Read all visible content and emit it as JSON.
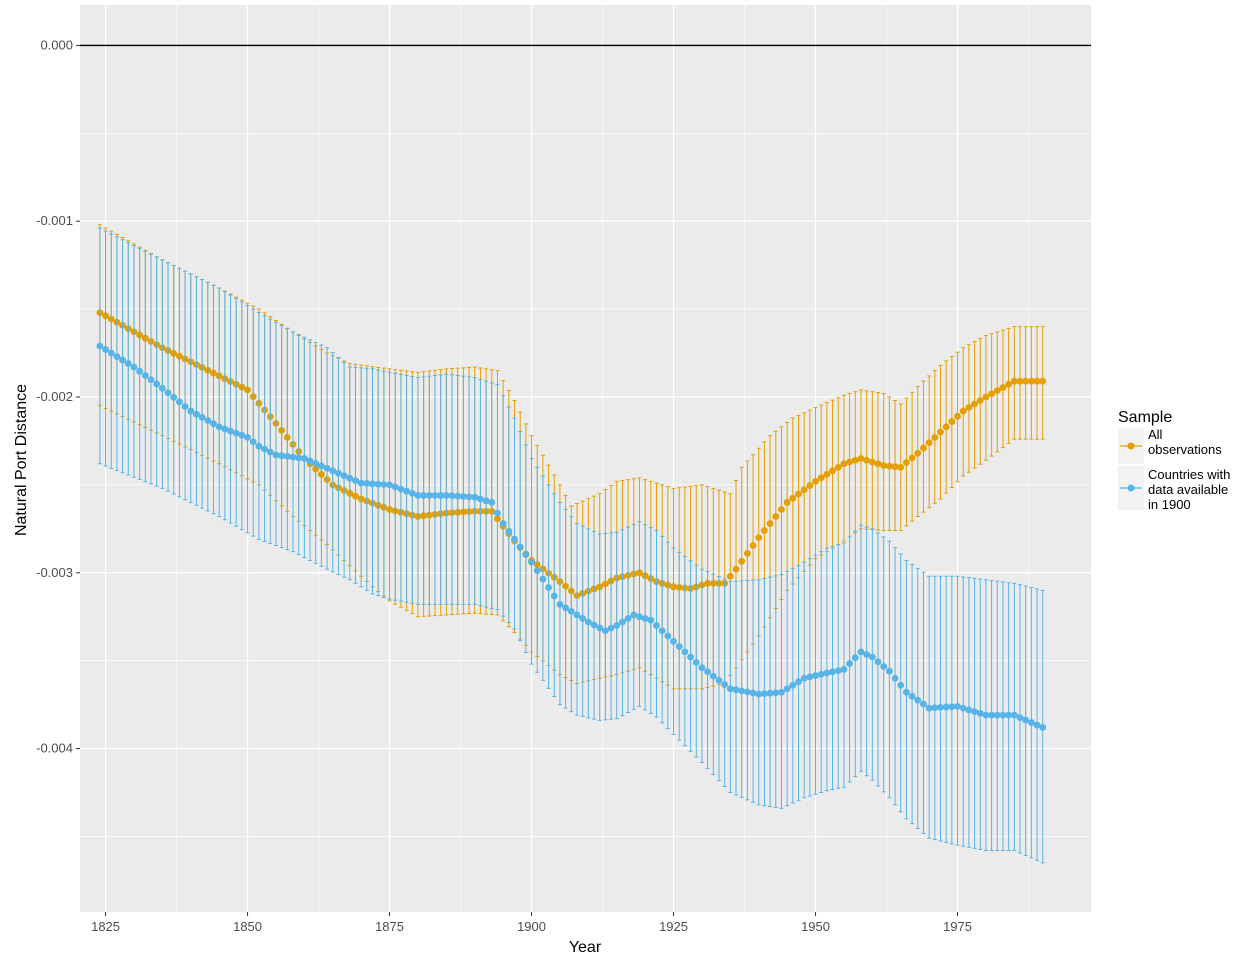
{
  "colors": {
    "panel_bg": "#EBEBEB",
    "grid": "#FFFFFF",
    "zero_line": "#000000",
    "all_observations": "#E69F00",
    "countries_1900": "#56B4E9"
  },
  "chart_data": {
    "type": "line",
    "title": "",
    "xlabel": "Year",
    "ylabel": "Natural Port Distance",
    "xlim": [
      1820.5,
      1998.5
    ],
    "ylim": [
      -0.00493,
      0.00023
    ],
    "x_ticks": [
      1825,
      1850,
      1875,
      1900,
      1925,
      1950,
      1975
    ],
    "x_tick_labels": [
      "1825",
      "1850",
      "1875",
      "1900",
      "1925",
      "1950",
      "1975"
    ],
    "y_ticks": [
      0.0,
      -0.001,
      -0.002,
      -0.003,
      -0.004
    ],
    "y_tick_labels": [
      "0.000",
      "-0.001",
      "-0.002",
      "-0.003",
      "-0.004"
    ],
    "hline": 0.0,
    "grid": true,
    "legend": {
      "title": "Sample",
      "position": "right",
      "entries": [
        {
          "label_lines": [
            "All",
            "observations"
          ]
        },
        {
          "label_lines": [
            "Countries with",
            "data available",
            "in 1900"
          ]
        }
      ]
    },
    "x_range": [
      1824,
      1990
    ],
    "series": [
      {
        "label": "All observations",
        "color": "#E69F00",
        "estimate_knots": [
          [
            1824,
            -0.00152
          ],
          [
            1835,
            -0.00172
          ],
          [
            1845,
            -0.00188
          ],
          [
            1850,
            -0.00196
          ],
          [
            1855,
            -0.00215
          ],
          [
            1860,
            -0.00235
          ],
          [
            1865,
            -0.0025
          ],
          [
            1870,
            -0.00258
          ],
          [
            1875,
            -0.00264
          ],
          [
            1880,
            -0.00268
          ],
          [
            1885,
            -0.00266
          ],
          [
            1890,
            -0.00265
          ],
          [
            1893,
            -0.00265
          ],
          [
            1897,
            -0.00282
          ],
          [
            1900,
            -0.00293
          ],
          [
            1905,
            -0.00305
          ],
          [
            1908,
            -0.00313
          ],
          [
            1912,
            -0.00308
          ],
          [
            1915,
            -0.00303
          ],
          [
            1919,
            -0.003
          ],
          [
            1922,
            -0.00305
          ],
          [
            1925,
            -0.00308
          ],
          [
            1928,
            -0.00309
          ],
          [
            1931,
            -0.00306
          ],
          [
            1934,
            -0.00306
          ],
          [
            1936,
            -0.00298
          ],
          [
            1940,
            -0.0028
          ],
          [
            1945,
            -0.0026
          ],
          [
            1950,
            -0.00248
          ],
          [
            1955,
            -0.00238
          ],
          [
            1958,
            -0.00235
          ],
          [
            1962,
            -0.00239
          ],
          [
            1965,
            -0.0024
          ],
          [
            1968,
            -0.00232
          ],
          [
            1972,
            -0.0022
          ],
          [
            1976,
            -0.00208
          ],
          [
            1980,
            -0.002
          ],
          [
            1985,
            -0.00191
          ],
          [
            1990,
            -0.00191
          ]
        ],
        "upper_knots": [
          [
            1824,
            -0.00102
          ],
          [
            1835,
            -0.00122
          ],
          [
            1845,
            -0.00138
          ],
          [
            1852,
            -0.0015
          ],
          [
            1858,
            -0.00163
          ],
          [
            1864,
            -0.00175
          ],
          [
            1868,
            -0.00181
          ],
          [
            1875,
            -0.00184
          ],
          [
            1880,
            -0.00186
          ],
          [
            1885,
            -0.00184
          ],
          [
            1890,
            -0.00183
          ],
          [
            1894,
            -0.00185
          ],
          [
            1897,
            -0.00202
          ],
          [
            1900,
            -0.00222
          ],
          [
            1905,
            -0.0025
          ],
          [
            1907,
            -0.00262
          ],
          [
            1912,
            -0.00255
          ],
          [
            1915,
            -0.00248
          ],
          [
            1919,
            -0.00246
          ],
          [
            1925,
            -0.00252
          ],
          [
            1930,
            -0.0025
          ],
          [
            1935,
            -0.00255
          ],
          [
            1937,
            -0.0024
          ],
          [
            1942,
            -0.00222
          ],
          [
            1946,
            -0.00212
          ],
          [
            1950,
            -0.00206
          ],
          [
            1955,
            -0.00199
          ],
          [
            1958,
            -0.00196
          ],
          [
            1962,
            -0.00198
          ],
          [
            1965,
            -0.00204
          ],
          [
            1968,
            -0.00194
          ],
          [
            1972,
            -0.00182
          ],
          [
            1976,
            -0.00172
          ],
          [
            1980,
            -0.00165
          ],
          [
            1985,
            -0.0016
          ],
          [
            1990,
            -0.0016
          ]
        ],
        "lower_knots": [
          [
            1824,
            -0.00205
          ],
          [
            1835,
            -0.00222
          ],
          [
            1845,
            -0.00238
          ],
          [
            1852,
            -0.0025
          ],
          [
            1858,
            -0.00268
          ],
          [
            1864,
            -0.00284
          ],
          [
            1868,
            -0.00296
          ],
          [
            1872,
            -0.00308
          ],
          [
            1875,
            -0.00316
          ],
          [
            1880,
            -0.00325
          ],
          [
            1885,
            -0.00324
          ],
          [
            1890,
            -0.00323
          ],
          [
            1894,
            -0.00324
          ],
          [
            1897,
            -0.00334
          ],
          [
            1900,
            -0.00345
          ],
          [
            1905,
            -0.00358
          ],
          [
            1908,
            -0.00363
          ],
          [
            1912,
            -0.0036
          ],
          [
            1915,
            -0.00358
          ],
          [
            1919,
            -0.00354
          ],
          [
            1925,
            -0.00366
          ],
          [
            1930,
            -0.00366
          ],
          [
            1934,
            -0.00363
          ],
          [
            1936,
            -0.00354
          ],
          [
            1940,
            -0.00336
          ],
          [
            1945,
            -0.0031
          ],
          [
            1950,
            -0.00292
          ],
          [
            1955,
            -0.00282
          ],
          [
            1958,
            -0.00275
          ],
          [
            1962,
            -0.00276
          ],
          [
            1965,
            -0.00276
          ],
          [
            1968,
            -0.00268
          ],
          [
            1972,
            -0.00258
          ],
          [
            1976,
            -0.00245
          ],
          [
            1980,
            -0.00236
          ],
          [
            1985,
            -0.00224
          ],
          [
            1990,
            -0.00224
          ]
        ]
      },
      {
        "label": "Countries with data available in 1900",
        "color": "#56B4E9",
        "estimate_knots": [
          [
            1824,
            -0.00171
          ],
          [
            1830,
            -0.00183
          ],
          [
            1835,
            -0.00195
          ],
          [
            1840,
            -0.00208
          ],
          [
            1845,
            -0.00217
          ],
          [
            1850,
            -0.00223
          ],
          [
            1852,
            -0.00228
          ],
          [
            1855,
            -0.00233
          ],
          [
            1860,
            -0.00235
          ],
          [
            1865,
            -0.00242
          ],
          [
            1870,
            -0.00249
          ],
          [
            1875,
            -0.0025
          ],
          [
            1880,
            -0.00256
          ],
          [
            1885,
            -0.00256
          ],
          [
            1890,
            -0.00257
          ],
          [
            1893,
            -0.0026
          ],
          [
            1895,
            -0.00272
          ],
          [
            1900,
            -0.00294
          ],
          [
            1905,
            -0.00318
          ],
          [
            1910,
            -0.00328
          ],
          [
            1913,
            -0.00333
          ],
          [
            1915,
            -0.0033
          ],
          [
            1918,
            -0.00324
          ],
          [
            1921,
            -0.00327
          ],
          [
            1925,
            -0.00339
          ],
          [
            1930,
            -0.00354
          ],
          [
            1935,
            -0.00366
          ],
          [
            1940,
            -0.00369
          ],
          [
            1944,
            -0.00368
          ],
          [
            1948,
            -0.0036
          ],
          [
            1952,
            -0.00357
          ],
          [
            1955,
            -0.00355
          ],
          [
            1958,
            -0.00345
          ],
          [
            1960,
            -0.00348
          ],
          [
            1963,
            -0.00356
          ],
          [
            1966,
            -0.00368
          ],
          [
            1970,
            -0.00377
          ],
          [
            1975,
            -0.00376
          ],
          [
            1980,
            -0.00381
          ],
          [
            1985,
            -0.00381
          ],
          [
            1990,
            -0.00388
          ]
        ],
        "upper_knots": [
          [
            1824,
            -0.00104
          ],
          [
            1835,
            -0.00122
          ],
          [
            1845,
            -0.00138
          ],
          [
            1852,
            -0.00152
          ],
          [
            1858,
            -0.00163
          ],
          [
            1864,
            -0.00172
          ],
          [
            1868,
            -0.00183
          ],
          [
            1872,
            -0.00184
          ],
          [
            1875,
            -0.00186
          ],
          [
            1880,
            -0.00189
          ],
          [
            1885,
            -0.00187
          ],
          [
            1890,
            -0.00189
          ],
          [
            1894,
            -0.00193
          ],
          [
            1897,
            -0.00212
          ],
          [
            1900,
            -0.00235
          ],
          [
            1905,
            -0.0026
          ],
          [
            1908,
            -0.00272
          ],
          [
            1912,
            -0.00278
          ],
          [
            1915,
            -0.00277
          ],
          [
            1919,
            -0.00271
          ],
          [
            1922,
            -0.00276
          ],
          [
            1925,
            -0.00286
          ],
          [
            1930,
            -0.00298
          ],
          [
            1935,
            -0.00305
          ],
          [
            1940,
            -0.00304
          ],
          [
            1944,
            -0.00301
          ],
          [
            1948,
            -0.00294
          ],
          [
            1952,
            -0.00286
          ],
          [
            1955,
            -0.00283
          ],
          [
            1958,
            -0.00273
          ],
          [
            1960,
            -0.00275
          ],
          [
            1963,
            -0.00282
          ],
          [
            1966,
            -0.00293
          ],
          [
            1970,
            -0.00302
          ],
          [
            1975,
            -0.00302
          ],
          [
            1980,
            -0.00304
          ],
          [
            1985,
            -0.00306
          ],
          [
            1990,
            -0.0031
          ]
        ],
        "lower_knots": [
          [
            1824,
            -0.00238
          ],
          [
            1835,
            -0.00252
          ],
          [
            1845,
            -0.00268
          ],
          [
            1852,
            -0.00281
          ],
          [
            1858,
            -0.00288
          ],
          [
            1864,
            -0.00298
          ],
          [
            1868,
            -0.00304
          ],
          [
            1872,
            -0.00312
          ],
          [
            1875,
            -0.00315
          ],
          [
            1880,
            -0.00318
          ],
          [
            1885,
            -0.00318
          ],
          [
            1890,
            -0.00318
          ],
          [
            1894,
            -0.00321
          ],
          [
            1897,
            -0.00332
          ],
          [
            1900,
            -0.00352
          ],
          [
            1905,
            -0.00375
          ],
          [
            1908,
            -0.00381
          ],
          [
            1912,
            -0.00384
          ],
          [
            1915,
            -0.00383
          ],
          [
            1919,
            -0.00376
          ],
          [
            1922,
            -0.00382
          ],
          [
            1925,
            -0.00392
          ],
          [
            1930,
            -0.00408
          ],
          [
            1935,
            -0.00425
          ],
          [
            1940,
            -0.00432
          ],
          [
            1944,
            -0.00434
          ],
          [
            1948,
            -0.00428
          ],
          [
            1952,
            -0.00424
          ],
          [
            1955,
            -0.00422
          ],
          [
            1958,
            -0.00413
          ],
          [
            1960,
            -0.00418
          ],
          [
            1963,
            -0.00428
          ],
          [
            1966,
            -0.0044
          ],
          [
            1970,
            -0.00451
          ],
          [
            1975,
            -0.00455
          ],
          [
            1980,
            -0.00458
          ],
          [
            1985,
            -0.00458
          ],
          [
            1990,
            -0.00465
          ]
        ]
      }
    ]
  }
}
